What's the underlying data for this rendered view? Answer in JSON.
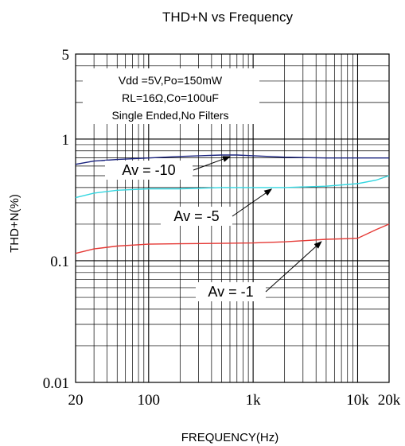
{
  "chart_data": {
    "type": "line",
    "title": "THD+N vs Frequency",
    "xlabel": "FREQUENCY(Hz)",
    "ylabel": "THD+N(%)",
    "x_scale": "log",
    "y_scale": "log",
    "xlim": [
      20,
      20000
    ],
    "ylim": [
      0.01,
      5
    ],
    "grid": true,
    "x_ticks": [
      {
        "value": 20,
        "label": "20"
      },
      {
        "value": 100,
        "label": "100"
      },
      {
        "value": 1000,
        "label": "1k"
      },
      {
        "value": 10000,
        "label": "10k"
      },
      {
        "value": 20000,
        "label": "20k"
      }
    ],
    "y_ticks": [
      {
        "value": 5,
        "label": "5"
      },
      {
        "value": 1,
        "label": "1"
      },
      {
        "value": 0.1,
        "label": "0.1"
      },
      {
        "value": 0.01,
        "label": "0.01"
      }
    ],
    "conditions": [
      "Vdd =5V,Po=150mW",
      "RL=16Ω,Co=100uF",
      "Single Ended,No Filters"
    ],
    "series": [
      {
        "name": "Av = -10",
        "color": "#1a237e",
        "points": [
          [
            20,
            0.62
          ],
          [
            30,
            0.66
          ],
          [
            50,
            0.68
          ],
          [
            100,
            0.7
          ],
          [
            200,
            0.72
          ],
          [
            500,
            0.74
          ],
          [
            700,
            0.74
          ],
          [
            1000,
            0.73
          ],
          [
            2000,
            0.71
          ],
          [
            5000,
            0.7
          ],
          [
            10000,
            0.7
          ],
          [
            20000,
            0.7
          ]
        ]
      },
      {
        "name": "Av = -5",
        "color": "#33d6e0",
        "points": [
          [
            20,
            0.33
          ],
          [
            30,
            0.36
          ],
          [
            50,
            0.38
          ],
          [
            100,
            0.39
          ],
          [
            200,
            0.39
          ],
          [
            500,
            0.4
          ],
          [
            1000,
            0.4
          ],
          [
            2000,
            0.4
          ],
          [
            5000,
            0.41
          ],
          [
            10000,
            0.43
          ],
          [
            15000,
            0.46
          ],
          [
            20000,
            0.5
          ]
        ]
      },
      {
        "name": "Av = -1",
        "color": "#e53935",
        "points": [
          [
            20,
            0.115
          ],
          [
            30,
            0.125
          ],
          [
            50,
            0.132
          ],
          [
            100,
            0.137
          ],
          [
            200,
            0.138
          ],
          [
            500,
            0.139
          ],
          [
            1000,
            0.14
          ],
          [
            2000,
            0.143
          ],
          [
            5000,
            0.15
          ],
          [
            8000,
            0.152
          ],
          [
            10000,
            0.153
          ],
          [
            15000,
            0.18
          ],
          [
            20000,
            0.2
          ]
        ]
      }
    ],
    "annotations": [
      {
        "label": "Av = -10",
        "series": "Av = -10",
        "arrow_to": [
          600,
          0.74
        ]
      },
      {
        "label": "Av = -5",
        "series": "Av = -5",
        "arrow_to": [
          1500,
          0.4
        ]
      },
      {
        "label": "Av = -1",
        "series": "Av = -1",
        "arrow_to": [
          4500,
          0.148
        ]
      }
    ]
  }
}
